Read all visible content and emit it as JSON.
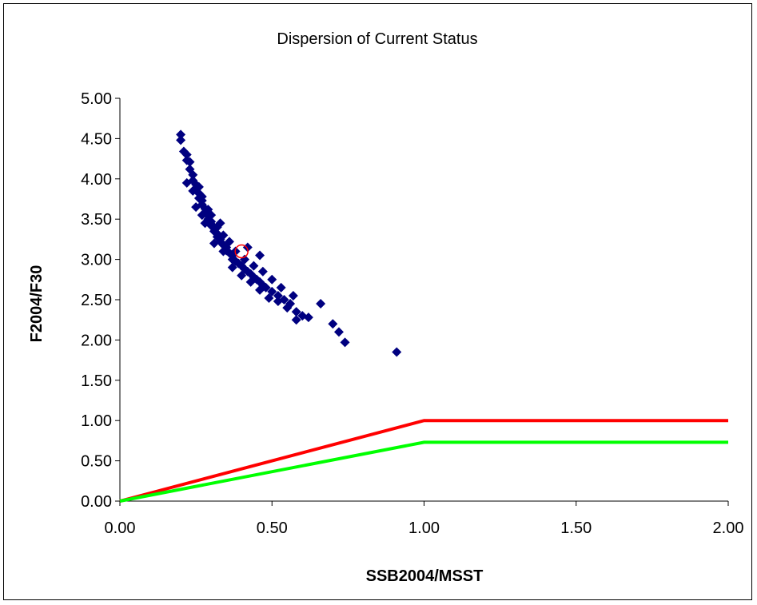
{
  "chart_data": {
    "type": "scatter",
    "title": "Dispersion of Current Status",
    "xlabel": "SSB2004/MSST",
    "ylabel": "F2004/F30",
    "xlim": [
      0,
      2
    ],
    "ylim": [
      0,
      5
    ],
    "x_ticks": [
      "0.00",
      "0.50",
      "1.00",
      "1.50",
      "2.00"
    ],
    "y_ticks": [
      "0.00",
      "0.50",
      "1.00",
      "1.50",
      "2.00",
      "2.50",
      "3.00",
      "3.50",
      "4.00",
      "4.50",
      "5.00"
    ],
    "grid": false,
    "legend": "none",
    "series": [
      {
        "marker": "diamond",
        "color": "#000080",
        "points": [
          [
            0.2,
            4.55
          ],
          [
            0.2,
            4.48
          ],
          [
            0.21,
            4.34
          ],
          [
            0.22,
            4.3
          ],
          [
            0.22,
            4.23
          ],
          [
            0.23,
            4.21
          ],
          [
            0.23,
            4.12
          ],
          [
            0.24,
            4.05
          ],
          [
            0.24,
            3.98
          ],
          [
            0.25,
            3.93
          ],
          [
            0.25,
            3.87
          ],
          [
            0.26,
            3.82
          ],
          [
            0.26,
            3.76
          ],
          [
            0.27,
            3.73
          ],
          [
            0.27,
            3.68
          ],
          [
            0.28,
            3.63
          ],
          [
            0.28,
            3.58
          ],
          [
            0.29,
            3.55
          ],
          [
            0.29,
            3.5
          ],
          [
            0.3,
            3.47
          ],
          [
            0.3,
            3.42
          ],
          [
            0.31,
            3.4
          ],
          [
            0.31,
            3.35
          ],
          [
            0.32,
            3.32
          ],
          [
            0.32,
            3.28
          ],
          [
            0.33,
            3.25
          ],
          [
            0.33,
            3.22
          ],
          [
            0.34,
            3.18
          ],
          [
            0.35,
            3.15
          ],
          [
            0.35,
            3.11
          ],
          [
            0.36,
            3.08
          ],
          [
            0.37,
            3.05
          ],
          [
            0.37,
            3.0
          ],
          [
            0.38,
            2.98
          ],
          [
            0.39,
            2.95
          ],
          [
            0.4,
            2.92
          ],
          [
            0.41,
            2.88
          ],
          [
            0.42,
            2.85
          ],
          [
            0.43,
            2.82
          ],
          [
            0.44,
            2.78
          ],
          [
            0.45,
            2.75
          ],
          [
            0.46,
            2.72
          ],
          [
            0.47,
            2.68
          ],
          [
            0.48,
            2.65
          ],
          [
            0.5,
            2.6
          ],
          [
            0.52,
            2.55
          ],
          [
            0.54,
            2.5
          ],
          [
            0.56,
            2.45
          ],
          [
            0.58,
            2.35
          ],
          [
            0.6,
            2.3
          ],
          [
            0.62,
            2.28
          ],
          [
            0.66,
            2.45
          ],
          [
            0.58,
            2.25
          ],
          [
            0.7,
            2.2
          ],
          [
            0.72,
            2.1
          ],
          [
            0.74,
            1.97
          ],
          [
            0.91,
            1.85
          ],
          [
            0.24,
            3.85
          ],
          [
            0.26,
            3.9
          ],
          [
            0.27,
            3.78
          ],
          [
            0.29,
            3.62
          ],
          [
            0.3,
            3.55
          ],
          [
            0.32,
            3.4
          ],
          [
            0.34,
            3.3
          ],
          [
            0.36,
            3.22
          ],
          [
            0.38,
            3.1
          ],
          [
            0.41,
            3.0
          ],
          [
            0.44,
            2.92
          ],
          [
            0.47,
            2.85
          ],
          [
            0.5,
            2.75
          ],
          [
            0.53,
            2.65
          ],
          [
            0.46,
            3.05
          ],
          [
            0.42,
            3.15
          ],
          [
            0.22,
            3.95
          ],
          [
            0.28,
            3.45
          ],
          [
            0.31,
            3.2
          ],
          [
            0.34,
            3.1
          ],
          [
            0.37,
            2.9
          ],
          [
            0.4,
            2.8
          ],
          [
            0.43,
            2.72
          ],
          [
            0.46,
            2.62
          ],
          [
            0.49,
            2.52
          ],
          [
            0.52,
            2.48
          ],
          [
            0.55,
            2.4
          ],
          [
            0.57,
            2.55
          ],
          [
            0.25,
            3.65
          ],
          [
            0.27,
            3.55
          ],
          [
            0.33,
            3.45
          ]
        ]
      },
      {
        "name": "",
        "marker": "circle",
        "color": "#ff0000",
        "points": [
          [
            0.4,
            3.1
          ]
        ]
      },
      {
        "line": true,
        "color": "#ff0000",
        "points": [
          [
            0,
            0
          ],
          [
            1,
            1
          ],
          [
            2,
            1
          ]
        ]
      },
      {
        "line": true,
        "color": "#00ff00",
        "points": [
          [
            0,
            0
          ],
          [
            1,
            0.73
          ],
          [
            2,
            0.73
          ]
        ]
      }
    ]
  }
}
